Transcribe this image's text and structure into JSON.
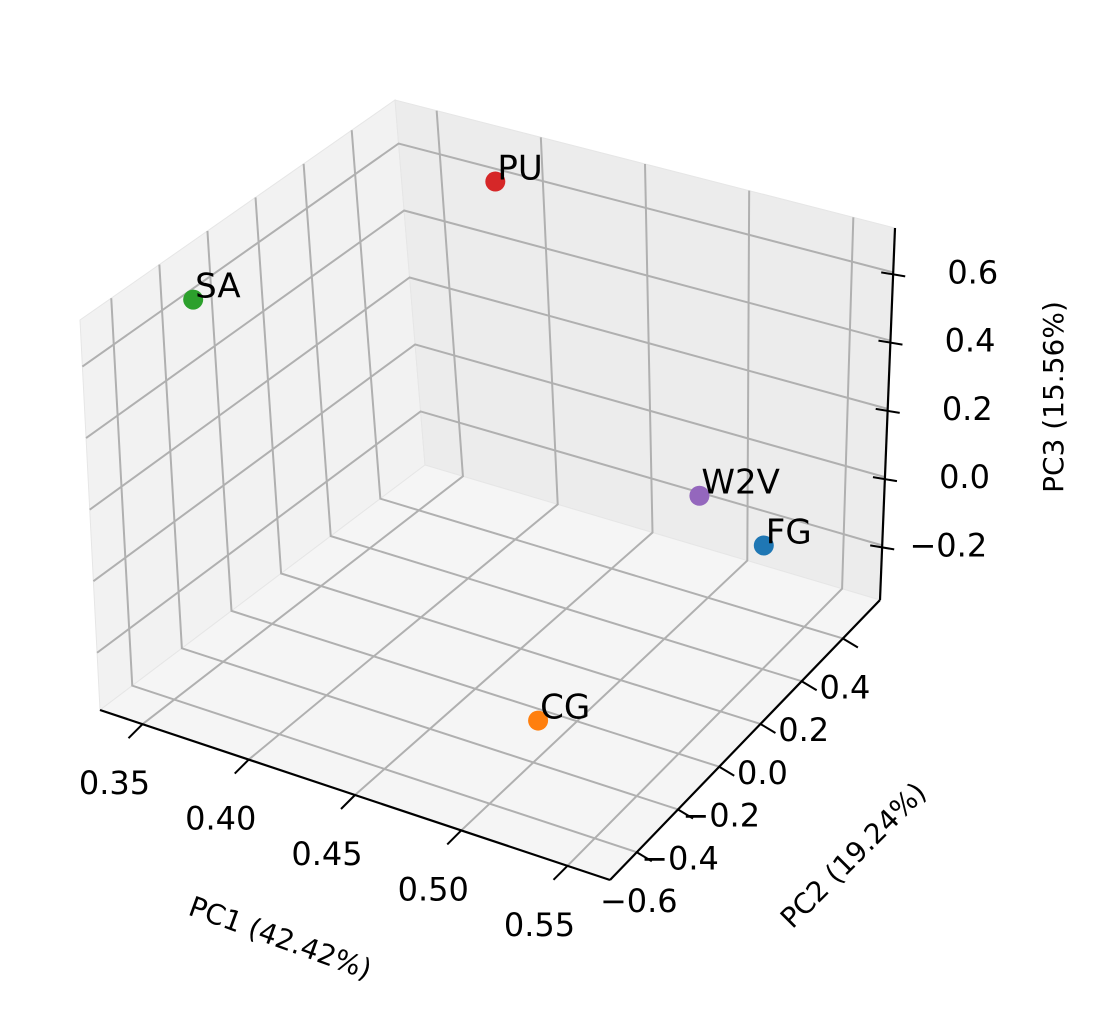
{
  "chart_data": {
    "type": "scatter",
    "projection": "3d",
    "grid": true,
    "legend": "none",
    "title": "",
    "xlabel": "PC1 (42.42%)",
    "ylabel": "PC2 (19.24%)",
    "zlabel": "PC3 (15.56%)",
    "xlim": [
      0.33,
      0.57
    ],
    "ylim": [
      -0.73,
      0.58
    ],
    "zlim": [
      -0.36,
      0.73
    ],
    "x_ticks": [
      "0.35",
      "0.40",
      "0.45",
      "0.50",
      "0.55"
    ],
    "y_ticks": [
      "−0.6",
      "−0.4",
      "−0.2",
      "0.0",
      "0.2",
      "0.4"
    ],
    "z_ticks": [
      "−0.2",
      "0.0",
      "0.2",
      "0.4",
      "0.6"
    ],
    "points": [
      {
        "label": "FG",
        "x": 0.55,
        "y": 0.25,
        "z": -0.05,
        "color": "#1f77b4"
      },
      {
        "label": "CG",
        "x": 0.5,
        "y": -0.35,
        "z": -0.28,
        "color": "#ff7f0e"
      },
      {
        "label": "SA",
        "x": 0.34,
        "y": -0.3,
        "z": 0.55,
        "color": "#2ca02c"
      },
      {
        "label": "PU",
        "x": 0.42,
        "y": 0.35,
        "z": 0.65,
        "color": "#d62728"
      },
      {
        "label": "W2V",
        "x": 0.51,
        "y": 0.35,
        "z": -0.05,
        "color": "#9467bd"
      }
    ]
  },
  "colors": {
    "pane_back": "#f2f2f2",
    "pane_side": "#ececec",
    "pane_floor": "#f5f5f5",
    "grid": "#b0b0b0",
    "axis": "#000000"
  }
}
